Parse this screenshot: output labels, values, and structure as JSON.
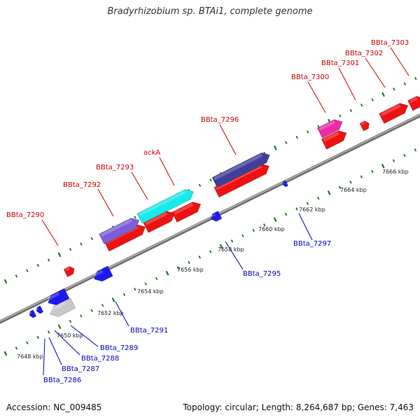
{
  "title": "Bradyrhizobium sp. BTAi1, complete genome",
  "colors": {
    "backbone": "#8c8c8c",
    "ticks": "#1a7a1a",
    "forward_label": "#cc0000",
    "reverse_label": "#0000bb"
  },
  "scale_labels": [
    "7648 kbp",
    "7650 kbp",
    "7652 kbp",
    "7654 kbp",
    "7656 kbp",
    "7658 kbp",
    "7660 kbp",
    "7662 kbp",
    "7664 kbp",
    "7666 kbp"
  ],
  "forward_labels": [
    "BBta_7290",
    "BBta_7292",
    "BBta_7293",
    "ackA",
    "BBta_7296",
    "BBta_7300",
    "BBta_7301",
    "BBta_7302",
    "BBta_7303"
  ],
  "reverse_labels": [
    "BBta_7286",
    "BBta_7287",
    "BBta_7288",
    "BBta_7289",
    "BBta_7291",
    "BBta_7295",
    "BBta_7297"
  ],
  "footer": {
    "accession": "Accession: NC_009485",
    "summary": "Topology: circular; Length: 8,264,687 bp; Genes: 7,463"
  }
}
